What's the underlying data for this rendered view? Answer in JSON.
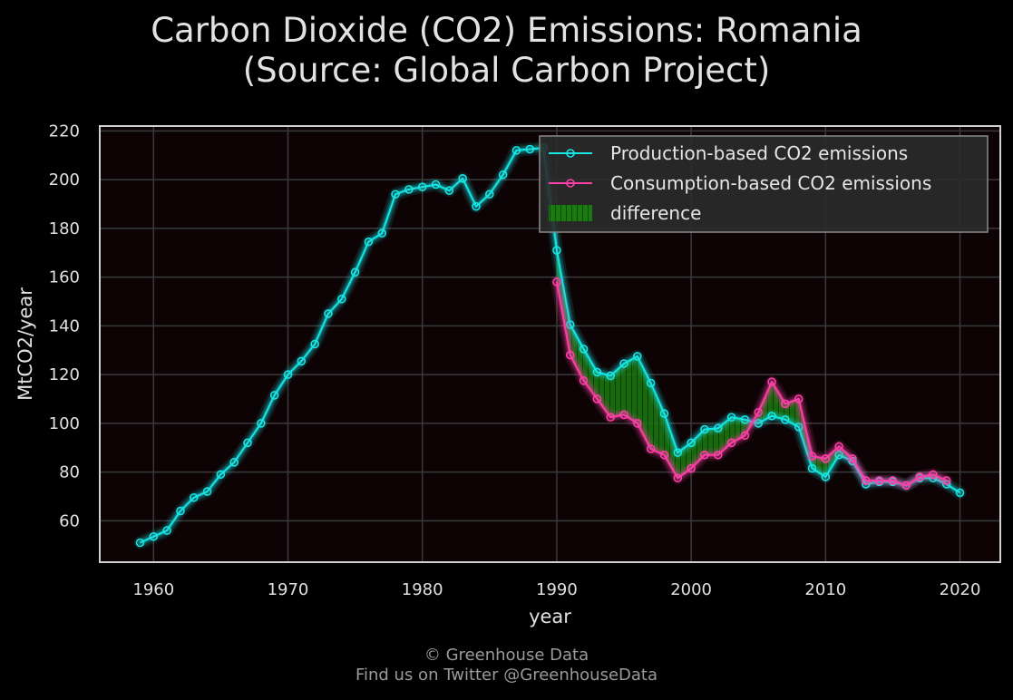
{
  "chart_data": {
    "type": "line",
    "title": "Carbon Dioxide (CO2) Emissions: Romania",
    "subtitle": "(Source: Global Carbon Project)",
    "xlabel": "year",
    "ylabel": "MtCO2/year",
    "xlim": [
      1956,
      2023
    ],
    "ylim": [
      43,
      222
    ],
    "xticks": [
      1960,
      1970,
      1980,
      1990,
      2000,
      2010,
      2020
    ],
    "yticks": [
      60,
      80,
      100,
      120,
      140,
      160,
      180,
      200,
      220
    ],
    "grid": true,
    "legend_position": "top-right",
    "colors": {
      "production": "#17e6e6",
      "consumption": "#ff3fa8",
      "difference": "#1a7a10",
      "background": "#0d0305"
    },
    "series": [
      {
        "name": "Production-based CO2 emissions",
        "x": [
          1959,
          1960,
          1961,
          1962,
          1963,
          1964,
          1965,
          1966,
          1967,
          1968,
          1969,
          1970,
          1971,
          1972,
          1973,
          1974,
          1975,
          1976,
          1977,
          1978,
          1979,
          1980,
          1981,
          1982,
          1983,
          1984,
          1985,
          1986,
          1987,
          1988,
          1989,
          1990,
          1991,
          1992,
          1993,
          1994,
          1995,
          1996,
          1997,
          1998,
          1999,
          2000,
          2001,
          2002,
          2003,
          2004,
          2005,
          2006,
          2007,
          2008,
          2009,
          2010,
          2011,
          2012,
          2013,
          2014,
          2015,
          2016,
          2017,
          2018,
          2019,
          2020
        ],
        "values": [
          51,
          53.5,
          56,
          64,
          69.5,
          72,
          79,
          84,
          92,
          100,
          111.5,
          120,
          125.5,
          132.5,
          145,
          151,
          162,
          174.5,
          178,
          194,
          196,
          197,
          198,
          195.5,
          200.5,
          189,
          194,
          202,
          212,
          212.5,
          213,
          171,
          140.5,
          130.5,
          121,
          119.5,
          124.5,
          127.5,
          116.5,
          104,
          88,
          92,
          97.5,
          98,
          102.5,
          101.5,
          100,
          103,
          101.5,
          98.5,
          81.5,
          78,
          87,
          84.5,
          75,
          76,
          76,
          74.5,
          77.5,
          77.5,
          75,
          71.5
        ]
      },
      {
        "name": "Consumption-based CO2 emissions",
        "x": [
          1990,
          1991,
          1992,
          1993,
          1994,
          1995,
          1996,
          1997,
          1998,
          1999,
          2000,
          2001,
          2002,
          2003,
          2004,
          2005,
          2006,
          2007,
          2008,
          2009,
          2010,
          2011,
          2012,
          2013,
          2014,
          2015,
          2016,
          2017,
          2018,
          2019
        ],
        "values": [
          158,
          128,
          117.5,
          110,
          102.5,
          103.5,
          100,
          89.5,
          87,
          77.5,
          81.5,
          87,
          87,
          92,
          95,
          104.5,
          117,
          108,
          110,
          86.5,
          85.5,
          90.5,
          85.5,
          76.5,
          76.5,
          76.5,
          74.5,
          78,
          79,
          76.5
        ]
      }
    ],
    "legend": [
      "Production-based CO2 emissions",
      "Consumption-based CO2 emissions",
      "difference"
    ]
  },
  "footer": {
    "line1": "© Greenhouse Data",
    "line2": "Find us on Twitter @GreenhouseData"
  }
}
